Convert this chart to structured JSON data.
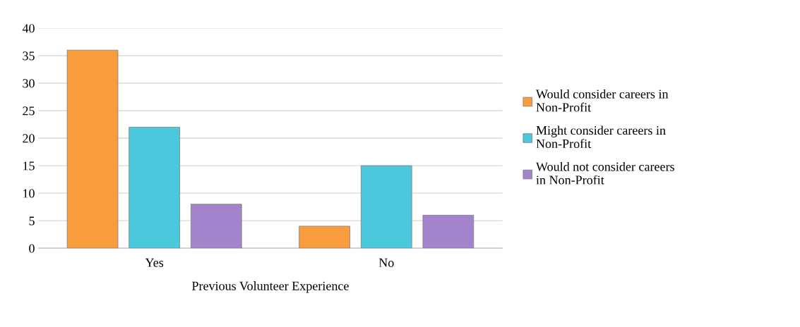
{
  "chart_data": {
    "type": "bar",
    "categories": [
      "Yes",
      "No"
    ],
    "xlabel": "Previous Volunteer Experience",
    "series": [
      {
        "name": "Would consider careers in Non-Profit",
        "color": "#f89c3e",
        "values": [
          36,
          4
        ]
      },
      {
        "name": "Might consider careers in Non-Profit",
        "color": "#4cc8dd",
        "values": [
          22,
          15
        ]
      },
      {
        "name": "Would not consider careers in Non-Profit",
        "color": "#a283cc",
        "values": [
          8,
          6
        ]
      }
    ],
    "ylim": [
      0,
      40
    ],
    "yticks": [
      0,
      5,
      10,
      15,
      20,
      25,
      30,
      35,
      40
    ],
    "grid": "y",
    "legend": "right"
  }
}
